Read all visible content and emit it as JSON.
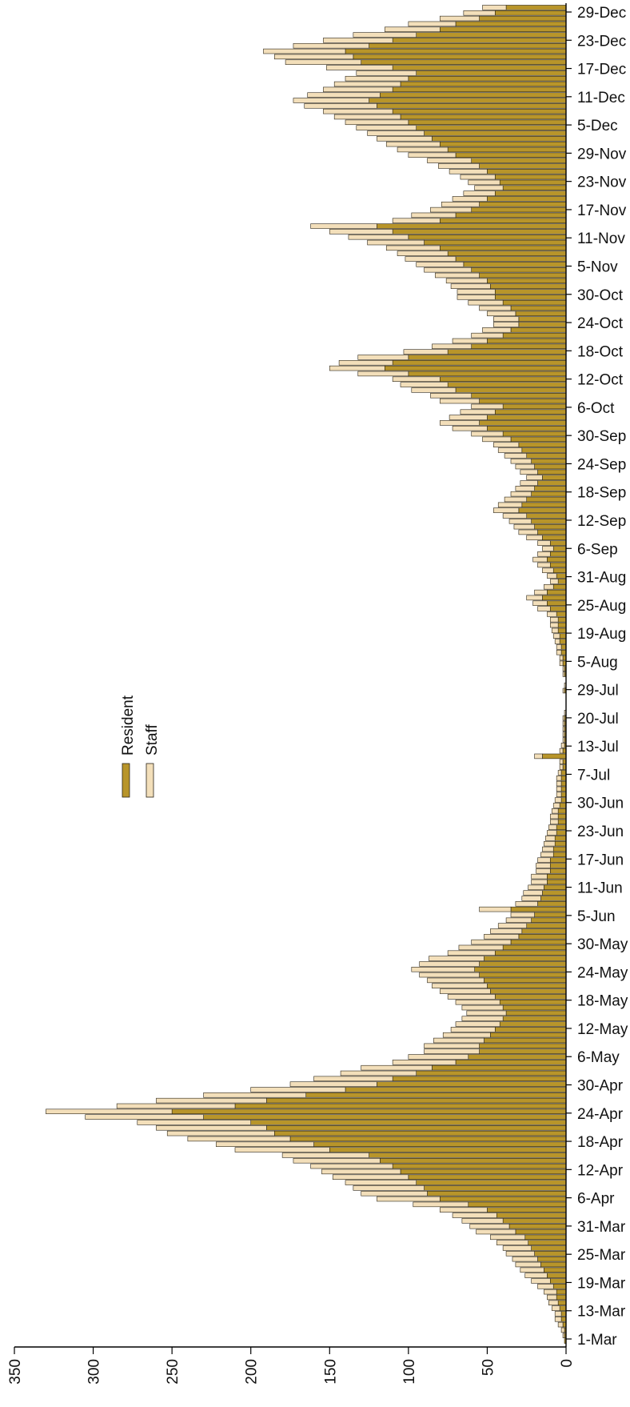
{
  "colors": {
    "resident": "#b8952a",
    "staff": "#f3dfba",
    "outline": "#2a2418",
    "axis": "#000000",
    "text": "#111111"
  },
  "chart_data": {
    "type": "bar",
    "orientation": "horizontal-stacked",
    "title": "",
    "xlabel": "",
    "ylabel": "",
    "xlim": [
      0,
      350
    ],
    "x_ticks": [
      0,
      50,
      100,
      150,
      200,
      250,
      300,
      350
    ],
    "grid": false,
    "legend_placement": "left-middle",
    "date_ticks": [
      "1-Mar",
      "13-Mar",
      "19-Mar",
      "25-Mar",
      "31-Mar",
      "6-Apr",
      "12-Apr",
      "18-Apr",
      "24-Apr",
      "30-Apr",
      "6-May",
      "12-May",
      "18-May",
      "24-May",
      "30-May",
      "5-Jun",
      "11-Jun",
      "17-Jun",
      "23-Jun",
      "30-Jun",
      "7-Jul",
      "13-Jul",
      "20-Jul",
      "29-Jul",
      "5-Aug",
      "19-Aug",
      "25-Aug",
      "31-Aug",
      "6-Sep",
      "12-Sep",
      "18-Sep",
      "24-Sep",
      "30-Sep",
      "6-Oct",
      "12-Oct",
      "18-Oct",
      "24-Oct",
      "30-Oct",
      "5-Nov",
      "11-Nov",
      "17-Nov",
      "23-Nov",
      "29-Nov",
      "5-Dec",
      "11-Dec",
      "17-Dec",
      "23-Dec",
      "29-Dec"
    ],
    "series": [
      {
        "name": "Resident",
        "color_key": "resident",
        "values": [
          1,
          1,
          1,
          2,
          3,
          3,
          4,
          5,
          6,
          6,
          8,
          10,
          12,
          14,
          16,
          18,
          20,
          22,
          24,
          26,
          32,
          36,
          40,
          44,
          50,
          62,
          80,
          88,
          90,
          95,
          100,
          105,
          110,
          118,
          125,
          150,
          160,
          175,
          185,
          190,
          200,
          230,
          250,
          210,
          190,
          165,
          140,
          120,
          110,
          95,
          85,
          70,
          62,
          55,
          55,
          52,
          48,
          45,
          42,
          40,
          38,
          40,
          42,
          45,
          48,
          50,
          52,
          55,
          58,
          55,
          52,
          45,
          40,
          35,
          30,
          28,
          25,
          22,
          20,
          35,
          18,
          16,
          15,
          14,
          12,
          12,
          10,
          10,
          10,
          8,
          8,
          7,
          7,
          6,
          6,
          5,
          5,
          5,
          4,
          3,
          3,
          3,
          3,
          3,
          3,
          2,
          2,
          15,
          2,
          1,
          1,
          1,
          1,
          1,
          1,
          0,
          0,
          0,
          0,
          1,
          0,
          0,
          1,
          1,
          2,
          2,
          3,
          3,
          4,
          4,
          5,
          5,
          5,
          6,
          10,
          12,
          15,
          12,
          8,
          5,
          6,
          8,
          10,
          12,
          10,
          8,
          10,
          15,
          18,
          20,
          22,
          25,
          30,
          28,
          25,
          22,
          20,
          18,
          15,
          18,
          20,
          22,
          25,
          28,
          30,
          35,
          40,
          50,
          55,
          50,
          45,
          40,
          55,
          60,
          70,
          75,
          80,
          100,
          115,
          110,
          100,
          75,
          60,
          50,
          40,
          35,
          30,
          30,
          32,
          35,
          40,
          45,
          45,
          48,
          50,
          55,
          60,
          65,
          70,
          75,
          80,
          90,
          100,
          110,
          120,
          80,
          70,
          60,
          55,
          50,
          45,
          40,
          42,
          45,
          50,
          55,
          60,
          70,
          75,
          80,
          85,
          90,
          95,
          100,
          105,
          110,
          120,
          125,
          118,
          110,
          105,
          100,
          95,
          110,
          130,
          135,
          140,
          125,
          110,
          95,
          80,
          70,
          55,
          45,
          38
        ]
      },
      {
        "name": "Staff",
        "color_key": "staff",
        "values": [
          0,
          1,
          2,
          3,
          4,
          4,
          5,
          6,
          6,
          8,
          10,
          12,
          14,
          15,
          16,
          16,
          18,
          18,
          20,
          22,
          25,
          25,
          26,
          28,
          30,
          35,
          40,
          42,
          45,
          45,
          48,
          50,
          52,
          55,
          55,
          60,
          62,
          65,
          68,
          70,
          72,
          75,
          80,
          75,
          70,
          65,
          60,
          55,
          50,
          48,
          45,
          40,
          38,
          35,
          35,
          32,
          30,
          28,
          28,
          26,
          25,
          26,
          28,
          30,
          32,
          35,
          36,
          38,
          40,
          38,
          35,
          30,
          28,
          25,
          22,
          20,
          18,
          16,
          15,
          20,
          14,
          12,
          12,
          10,
          10,
          10,
          9,
          9,
          8,
          8,
          7,
          7,
          6,
          6,
          5,
          5,
          5,
          4,
          4,
          4,
          3,
          3,
          3,
          3,
          2,
          2,
          2,
          5,
          2,
          2,
          1,
          1,
          1,
          1,
          1,
          1,
          0,
          0,
          0,
          1,
          1,
          0,
          1,
          1,
          2,
          2,
          3,
          3,
          3,
          4,
          4,
          5,
          5,
          6,
          8,
          9,
          10,
          8,
          6,
          5,
          6,
          7,
          8,
          9,
          8,
          7,
          8,
          10,
          12,
          13,
          14,
          15,
          16,
          15,
          14,
          13,
          12,
          11,
          10,
          11,
          12,
          13,
          14,
          15,
          16,
          18,
          20,
          22,
          25,
          24,
          22,
          20,
          25,
          26,
          28,
          30,
          30,
          32,
          35,
          34,
          32,
          28,
          25,
          22,
          20,
          18,
          16,
          16,
          18,
          20,
          22,
          24,
          24,
          25,
          26,
          28,
          30,
          30,
          32,
          32,
          34,
          36,
          38,
          40,
          42,
          30,
          28,
          26,
          24,
          22,
          20,
          18,
          20,
          22,
          24,
          26,
          28,
          30,
          32,
          34,
          35,
          36,
          38,
          40,
          42,
          44,
          46,
          48,
          46,
          44,
          42,
          40,
          38,
          42,
          48,
          50,
          52,
          48,
          44,
          40,
          35,
          30,
          25,
          20,
          15
        ]
      }
    ]
  }
}
